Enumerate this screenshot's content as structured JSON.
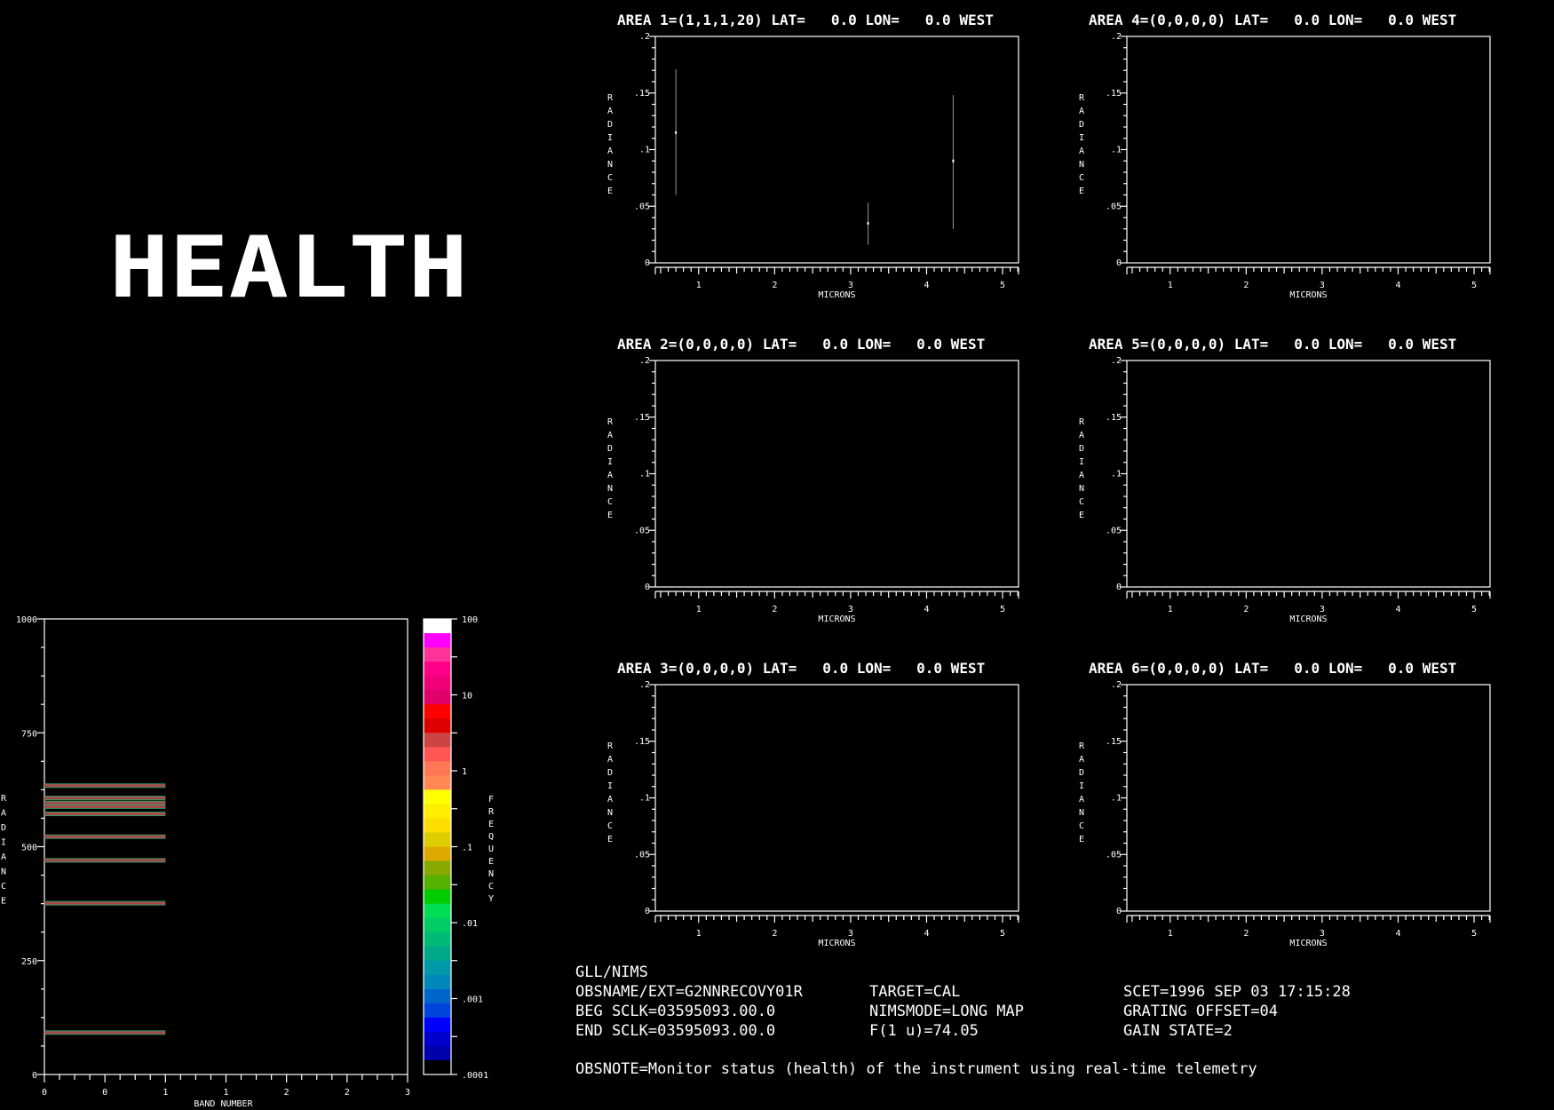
{
  "title": "HEALTH",
  "areas": [
    {
      "title": "AREA 1=(1,1,1,20) LAT=   0.0 LON=   0.0 WEST",
      "points": [
        {
          "x": 0.7,
          "y": 0.115,
          "ymin": 0.06,
          "ymax": 0.171
        },
        {
          "x": 3.23,
          "y": 0.035,
          "ymin": 0.016,
          "ymax": 0.053
        },
        {
          "x": 4.35,
          "y": 0.09,
          "ymin": 0.03,
          "ymax": 0.148
        }
      ]
    },
    {
      "title": "AREA 2=(0,0,0,0) LAT=   0.0 LON=   0.0 WEST",
      "points": []
    },
    {
      "title": "AREA 3=(0,0,0,0) LAT=   0.0 LON=   0.0 WEST",
      "points": []
    },
    {
      "title": "AREA 4=(0,0,0,0) LAT=   0.0 LON=   0.0 WEST",
      "points": []
    },
    {
      "title": "AREA 5=(0,0,0,0) LAT=   0.0 LON=   0.0 WEST",
      "points": []
    },
    {
      "title": "AREA 6=(0,0,0,0) LAT=   0.0 LON=   0.0 WEST",
      "points": []
    }
  ],
  "area_axes": {
    "ylabel": "RADIANCE",
    "xlabel": "MICRONS",
    "ylim": [
      0,
      0.2
    ],
    "xlim": [
      0.43,
      5.21
    ],
    "yticks": [
      {
        "v": 0.2,
        "label": ".2"
      },
      {
        "v": 0.15,
        "label": ".15"
      },
      {
        "v": 0.1,
        "label": ".1"
      },
      {
        "v": 0.05,
        "label": ".05"
      },
      {
        "v": 0,
        "label": "0"
      }
    ],
    "xticks": [
      {
        "v": 1,
        "label": "1"
      },
      {
        "v": 2,
        "label": "2"
      },
      {
        "v": 3,
        "label": "3"
      },
      {
        "v": 4,
        "label": "4"
      },
      {
        "v": 5,
        "label": "5"
      }
    ]
  },
  "chart_data": {
    "type": "heatmap",
    "ylabel": "RADIANCE",
    "xlabel": "BAND NUMBER",
    "ylim": [
      0,
      1000
    ],
    "xlim": [
      0,
      3
    ],
    "yticks": [
      {
        "v": 1000,
        "label": "1000"
      },
      {
        "v": 750,
        "label": "750"
      },
      {
        "v": 500,
        "label": "500"
      },
      {
        "v": 250,
        "label": "250"
      },
      {
        "v": 0,
        "label": "0"
      }
    ],
    "xticks": [
      {
        "v": 0,
        "label": "0"
      },
      {
        "v": 0.5,
        "label": "0"
      },
      {
        "v": 1,
        "label": "1"
      },
      {
        "v": 1.5,
        "label": "1"
      },
      {
        "v": 2,
        "label": "2"
      },
      {
        "v": 2.5,
        "label": "2"
      },
      {
        "v": 3,
        "label": "3"
      }
    ],
    "bars": {
      "band_start": 0,
      "band_end": 1,
      "radiance": [
        634,
        607,
        596,
        588,
        572,
        522,
        470,
        376,
        92
      ]
    },
    "bar_color": "#a84848",
    "bar_edge_color": "#2f9a66",
    "colorbar": {
      "label": "FREQUENCY",
      "scale": "log",
      "range": [
        0.0001,
        100
      ],
      "ticks": [
        "100",
        "10",
        "1",
        ".1",
        ".01",
        ".001",
        ".0001"
      ],
      "colors": [
        "#ffffff",
        "#ff00ff",
        "#ff3399",
        "#ff0088",
        "#f00078",
        "#e0006a",
        "#ff0000",
        "#dd0000",
        "#cc4444",
        "#ff5555",
        "#ff7755",
        "#ff8855",
        "#ffff00",
        "#ffee00",
        "#ffdd00",
        "#ddcc00",
        "#dda800",
        "#88aa00",
        "#55b000",
        "#00cc00",
        "#00dd55",
        "#00cc66",
        "#00bb77",
        "#00aa88",
        "#0099aa",
        "#0088bb",
        "#0066cc",
        "#0044dd",
        "#0000ff",
        "#0000cc",
        "#0000aa",
        "#000000"
      ]
    }
  },
  "info": {
    "instrument": "GLL/NIMS",
    "obsname": "OBSNAME/EXT=G2NNRECOVY01R",
    "beg_sclk": "BEG SCLK=03595093.00.0",
    "end_sclk": "END SCLK=03595093.00.0",
    "target": "TARGET=CAL",
    "nimsmode": "NIMSMODE=LONG MAP",
    "f1u": "F(1 u)=74.05",
    "scet": "SCET=1996 SEP 03 17:15:28",
    "grating": "GRATING OFFSET=04",
    "gain": "GAIN STATE=2",
    "obsnote": "OBSNOTE=Monitor status (health) of the instrument using real-time telemetry"
  }
}
